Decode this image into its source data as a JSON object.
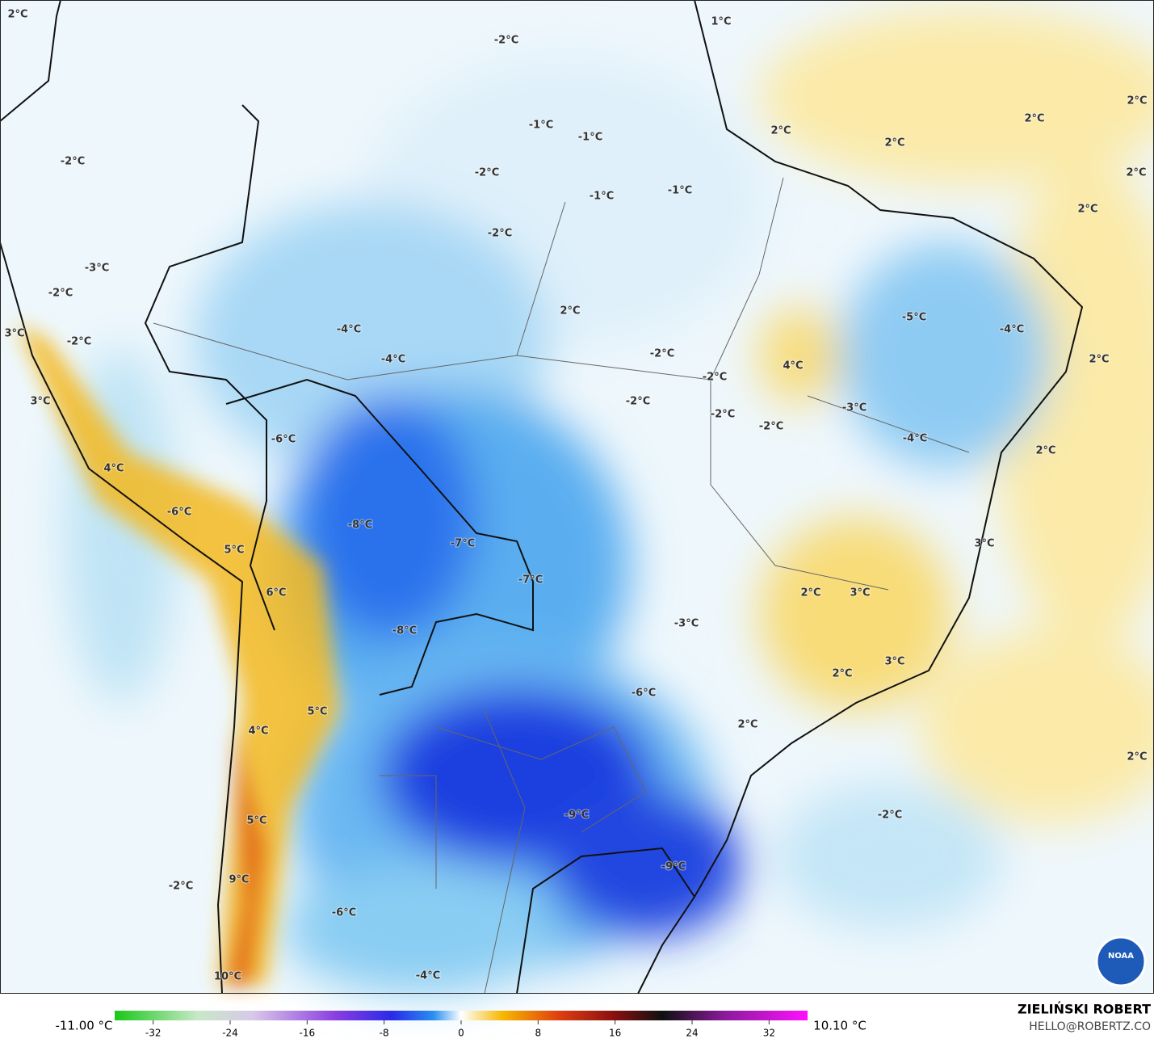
{
  "map_labels": [
    "2°C",
    "1°C",
    "-2°C",
    "2°C",
    "2°C",
    "2°C",
    "2°C",
    "-1°C",
    "-1°C",
    "-2°C",
    "-2°C",
    "2°C",
    "-1°C",
    "-1°C",
    "2°C",
    "-2°C",
    "-3°C",
    "-2°C",
    "2°C",
    "-5°C",
    "-4°C",
    "-4°C",
    "3°C",
    "-2°C",
    "-2°C",
    "-4°C",
    "2°C",
    "4°C",
    "-2°C",
    "3°C",
    "-2°C",
    "-3°C",
    "-2°C",
    "-2°C",
    "-6°C",
    "-4°C",
    "2°C",
    "4°C",
    "-6°C",
    "-8°C",
    "3°C",
    "-7°C",
    "5°C",
    "-7°C",
    "6°C",
    "2°C",
    "3°C",
    "-3°C",
    "-8°C",
    "3°C",
    "2°C",
    "-6°C",
    "5°C",
    "2°C",
    "4°C",
    "2°C",
    "-9°C",
    "-2°C",
    "5°C",
    "-9°C",
    "9°C",
    "-2°C",
    "-6°C",
    "-4°C",
    "10°C"
  ],
  "colorbar": {
    "min_label": "-11.00 °C",
    "max_label": "10.10 °C",
    "xlim": [
      -36,
      36
    ],
    "xticks": [
      -32,
      -24,
      -16,
      -8,
      0,
      8,
      16,
      24,
      32
    ]
  },
  "credit": {
    "name": "ZIELIŃSKI ROBERT",
    "email": "HELLO@ROBERTZ.CO"
  },
  "logo": "NOAA"
}
